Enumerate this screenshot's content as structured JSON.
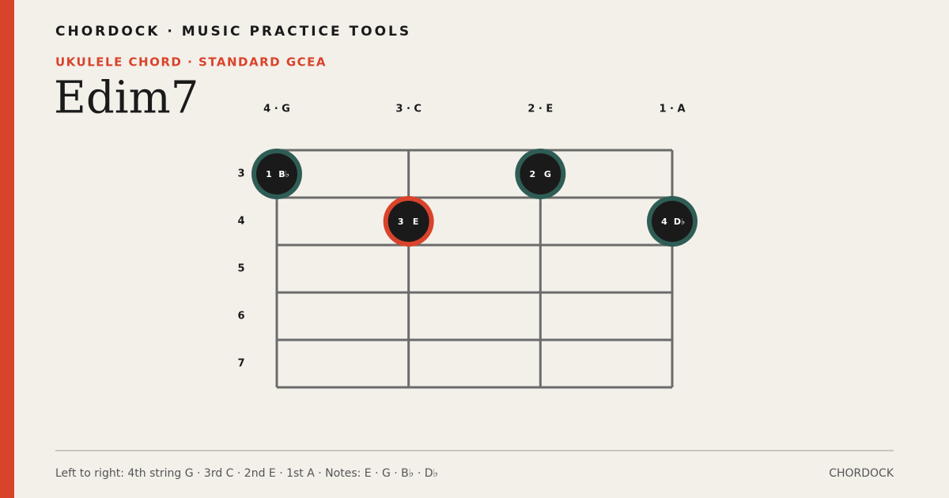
{
  "header": {
    "brand": "CHORDOCK · MUSIC PRACTICE TOOLS",
    "subtitle": "UKULELE CHORD · STANDARD GCEA",
    "title": "Edim7"
  },
  "strings": [
    "4 · G",
    "3 · C",
    "2 · E",
    "1 · A"
  ],
  "frets": [
    3,
    4,
    5,
    6,
    7
  ],
  "dots": [
    {
      "fret": 3,
      "finger": "1",
      "note": "B♭",
      "ring_color": "#2f5d55"
    },
    {
      "fret": 4,
      "finger": "3",
      "note": "E",
      "ring_color": "#d9432b"
    },
    {
      "fret": 3,
      "finger": "2",
      "note": "G",
      "ring_color": "#2f5d55"
    },
    {
      "fret": 4,
      "finger": "4",
      "note": "D♭",
      "ring_color": "#2f5d55"
    }
  ],
  "footer": {
    "caption": "Left to right: 4th string G · 3rd C · 2nd E · 1st A · Notes: E · G · B♭ · D♭",
    "brand": "CHORDOCK"
  }
}
